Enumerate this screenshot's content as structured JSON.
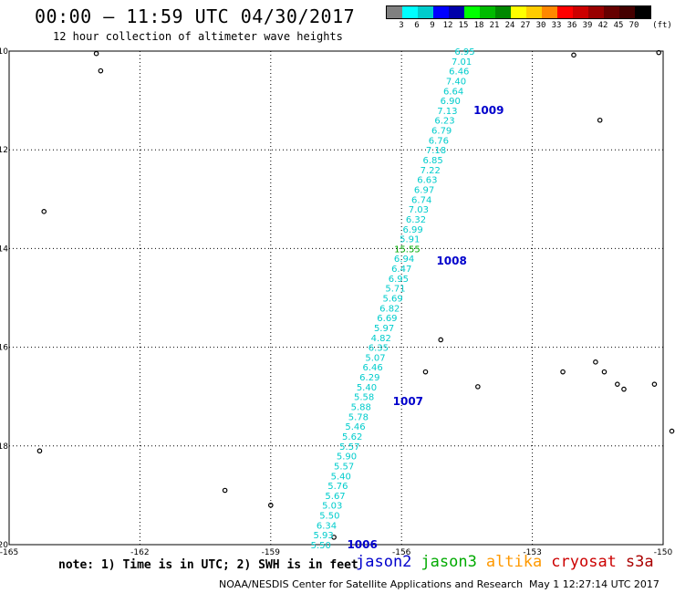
{
  "header": {
    "title": "00:00 – 11:59 UTC 04/30/2017",
    "subtitle": "12 hour collection of altimeter wave heights"
  },
  "color_scale": {
    "colors": [
      "#808080",
      "#00ffff",
      "#00cccc",
      "#0000ff",
      "#0000aa",
      "#00ff00",
      "#00bb00",
      "#008800",
      "#ffff00",
      "#ffcc00",
      "#ff8800",
      "#ff0000",
      "#cc0000",
      "#990000",
      "#660000",
      "#440000",
      "#000000"
    ],
    "labels": [
      "3",
      "6",
      "9",
      "12",
      "15",
      "18",
      "21",
      "24",
      "27",
      "30",
      "33",
      "36",
      "39",
      "42",
      "45",
      "70"
    ],
    "unit": "(ft)"
  },
  "axes": {
    "x_ticks": [
      "-165",
      "-162",
      "-159",
      "-156",
      "-153",
      "-150"
    ],
    "y_ticks": [
      "-10",
      "-12",
      "-14",
      "-16",
      "-18",
      "-20"
    ],
    "lon_range": [
      -165,
      -150
    ],
    "lat_range": [
      -20,
      -10
    ]
  },
  "track": {
    "color": "#00cccc",
    "highlight_color": "#00aa00",
    "points": [
      {
        "lat": -10.0,
        "lon": -154.55,
        "value": "6.95"
      },
      {
        "lat": -10.2,
        "lon": -154.62,
        "value": "7.01"
      },
      {
        "lat": -10.4,
        "lon": -154.68,
        "value": "6.46"
      },
      {
        "lat": -10.6,
        "lon": -154.75,
        "value": "7.40"
      },
      {
        "lat": -10.8,
        "lon": -154.81,
        "value": "6.64"
      },
      {
        "lat": -11.0,
        "lon": -154.88,
        "value": "6.90"
      },
      {
        "lat": -11.2,
        "lon": -154.95,
        "value": "7.13"
      },
      {
        "lat": -11.4,
        "lon": -155.01,
        "value": "6.23"
      },
      {
        "lat": -11.6,
        "lon": -155.08,
        "value": "6.79"
      },
      {
        "lat": -11.8,
        "lon": -155.15,
        "value": "6.76"
      },
      {
        "lat": -12.0,
        "lon": -155.21,
        "value": "7.18"
      },
      {
        "lat": -12.2,
        "lon": -155.28,
        "value": "6.85"
      },
      {
        "lat": -12.4,
        "lon": -155.34,
        "value": "7.22"
      },
      {
        "lat": -12.6,
        "lon": -155.41,
        "value": "6.63"
      },
      {
        "lat": -12.8,
        "lon": -155.48,
        "value": "6.97"
      },
      {
        "lat": -13.0,
        "lon": -155.54,
        "value": "6.74"
      },
      {
        "lat": -13.2,
        "lon": -155.61,
        "value": "7.03"
      },
      {
        "lat": -13.4,
        "lon": -155.67,
        "value": "6.32"
      },
      {
        "lat": -13.6,
        "lon": -155.74,
        "value": "6.99"
      },
      {
        "lat": -13.8,
        "lon": -155.81,
        "value": "5.91"
      },
      {
        "lat": -14.0,
        "lon": -155.87,
        "value": "15.55",
        "highlight": true
      },
      {
        "lat": -14.2,
        "lon": -155.94,
        "value": "6.94"
      },
      {
        "lat": -14.4,
        "lon": -156.0,
        "value": "6.47"
      },
      {
        "lat": -14.6,
        "lon": -156.07,
        "value": "6.95"
      },
      {
        "lat": -14.8,
        "lon": -156.14,
        "value": "5.71"
      },
      {
        "lat": -15.0,
        "lon": -156.2,
        "value": "5.69"
      },
      {
        "lat": -15.2,
        "lon": -156.27,
        "value": "6.82"
      },
      {
        "lat": -15.4,
        "lon": -156.33,
        "value": "6.69"
      },
      {
        "lat": -15.6,
        "lon": -156.4,
        "value": "5.97"
      },
      {
        "lat": -15.8,
        "lon": -156.47,
        "value": "4.82"
      },
      {
        "lat": -16.0,
        "lon": -156.53,
        "value": "6.35"
      },
      {
        "lat": -16.2,
        "lon": -156.6,
        "value": "5.07"
      },
      {
        "lat": -16.4,
        "lon": -156.66,
        "value": "6.46"
      },
      {
        "lat": -16.6,
        "lon": -156.73,
        "value": "6.29"
      },
      {
        "lat": -16.8,
        "lon": -156.8,
        "value": "5.40"
      },
      {
        "lat": -17.0,
        "lon": -156.86,
        "value": "5.58"
      },
      {
        "lat": -17.2,
        "lon": -156.93,
        "value": "5.88"
      },
      {
        "lat": -17.4,
        "lon": -156.99,
        "value": "5.78"
      },
      {
        "lat": -17.6,
        "lon": -157.06,
        "value": "5.46"
      },
      {
        "lat": -17.8,
        "lon": -157.13,
        "value": "5.62"
      },
      {
        "lat": -18.0,
        "lon": -157.19,
        "value": "5.57"
      },
      {
        "lat": -18.2,
        "lon": -157.26,
        "value": "5.90"
      },
      {
        "lat": -18.4,
        "lon": -157.32,
        "value": "5.57"
      },
      {
        "lat": -18.6,
        "lon": -157.39,
        "value": "5.40"
      },
      {
        "lat": -18.8,
        "lon": -157.46,
        "value": "5.76"
      },
      {
        "lat": -19.0,
        "lon": -157.52,
        "value": "5.67"
      },
      {
        "lat": -19.2,
        "lon": -157.59,
        "value": "5.03"
      },
      {
        "lat": -19.4,
        "lon": -157.65,
        "value": "5.50"
      },
      {
        "lat": -19.6,
        "lon": -157.72,
        "value": "6.34"
      },
      {
        "lat": -19.8,
        "lon": -157.79,
        "value": "5.93"
      },
      {
        "lat": -20.0,
        "lon": -157.85,
        "value": "5.50"
      }
    ],
    "cycles": [
      {
        "lat": -11.2,
        "lon": -154.35,
        "label": "1009"
      },
      {
        "lat": -14.25,
        "lon": -155.2,
        "label": "1008"
      },
      {
        "lat": -17.1,
        "lon": -156.2,
        "label": "1007"
      },
      {
        "lat": -20.0,
        "lon": -157.25,
        "label": "1006"
      }
    ]
  },
  "islands": [
    {
      "lat": -10.05,
      "lon": -163.0
    },
    {
      "lat": -10.4,
      "lon": -162.9
    },
    {
      "lat": -10.08,
      "lon": -152.05
    },
    {
      "lat": -10.03,
      "lon": -150.1
    },
    {
      "lat": -11.4,
      "lon": -151.45
    },
    {
      "lat": -13.25,
      "lon": -164.2
    },
    {
      "lat": -15.85,
      "lon": -155.1
    },
    {
      "lat": -16.5,
      "lon": -155.45
    },
    {
      "lat": -16.8,
      "lon": -154.25
    },
    {
      "lat": -16.5,
      "lon": -152.3
    },
    {
      "lat": -16.3,
      "lon": -151.55
    },
    {
      "lat": -16.5,
      "lon": -151.35
    },
    {
      "lat": -16.75,
      "lon": -151.05
    },
    {
      "lat": -16.85,
      "lon": -150.9
    },
    {
      "lat": -16.75,
      "lon": -150.2
    },
    {
      "lat": -17.7,
      "lon": -149.8
    },
    {
      "lat": -18.1,
      "lon": -164.3
    },
    {
      "lat": -18.9,
      "lon": -160.05
    },
    {
      "lat": -19.2,
      "lon": -159.0
    },
    {
      "lat": -19.85,
      "lon": -157.55
    }
  ],
  "footer": {
    "note": "note: 1) Time is in UTC; 2) SWH is in feet",
    "credit": "NOAA/NESDIS Center for Satellite Applications and Research",
    "timestamp": "May  1 12:27:14 UTC 2017",
    "satellites": [
      {
        "name": "jason2",
        "color": "#0000cc"
      },
      {
        "name": "jason3",
        "color": "#00aa00"
      },
      {
        "name": "altika",
        "color": "#ff9900"
      },
      {
        "name": "cryosat",
        "color": "#cc0000"
      },
      {
        "name": "s3a",
        "color": "#aa0000"
      }
    ]
  }
}
